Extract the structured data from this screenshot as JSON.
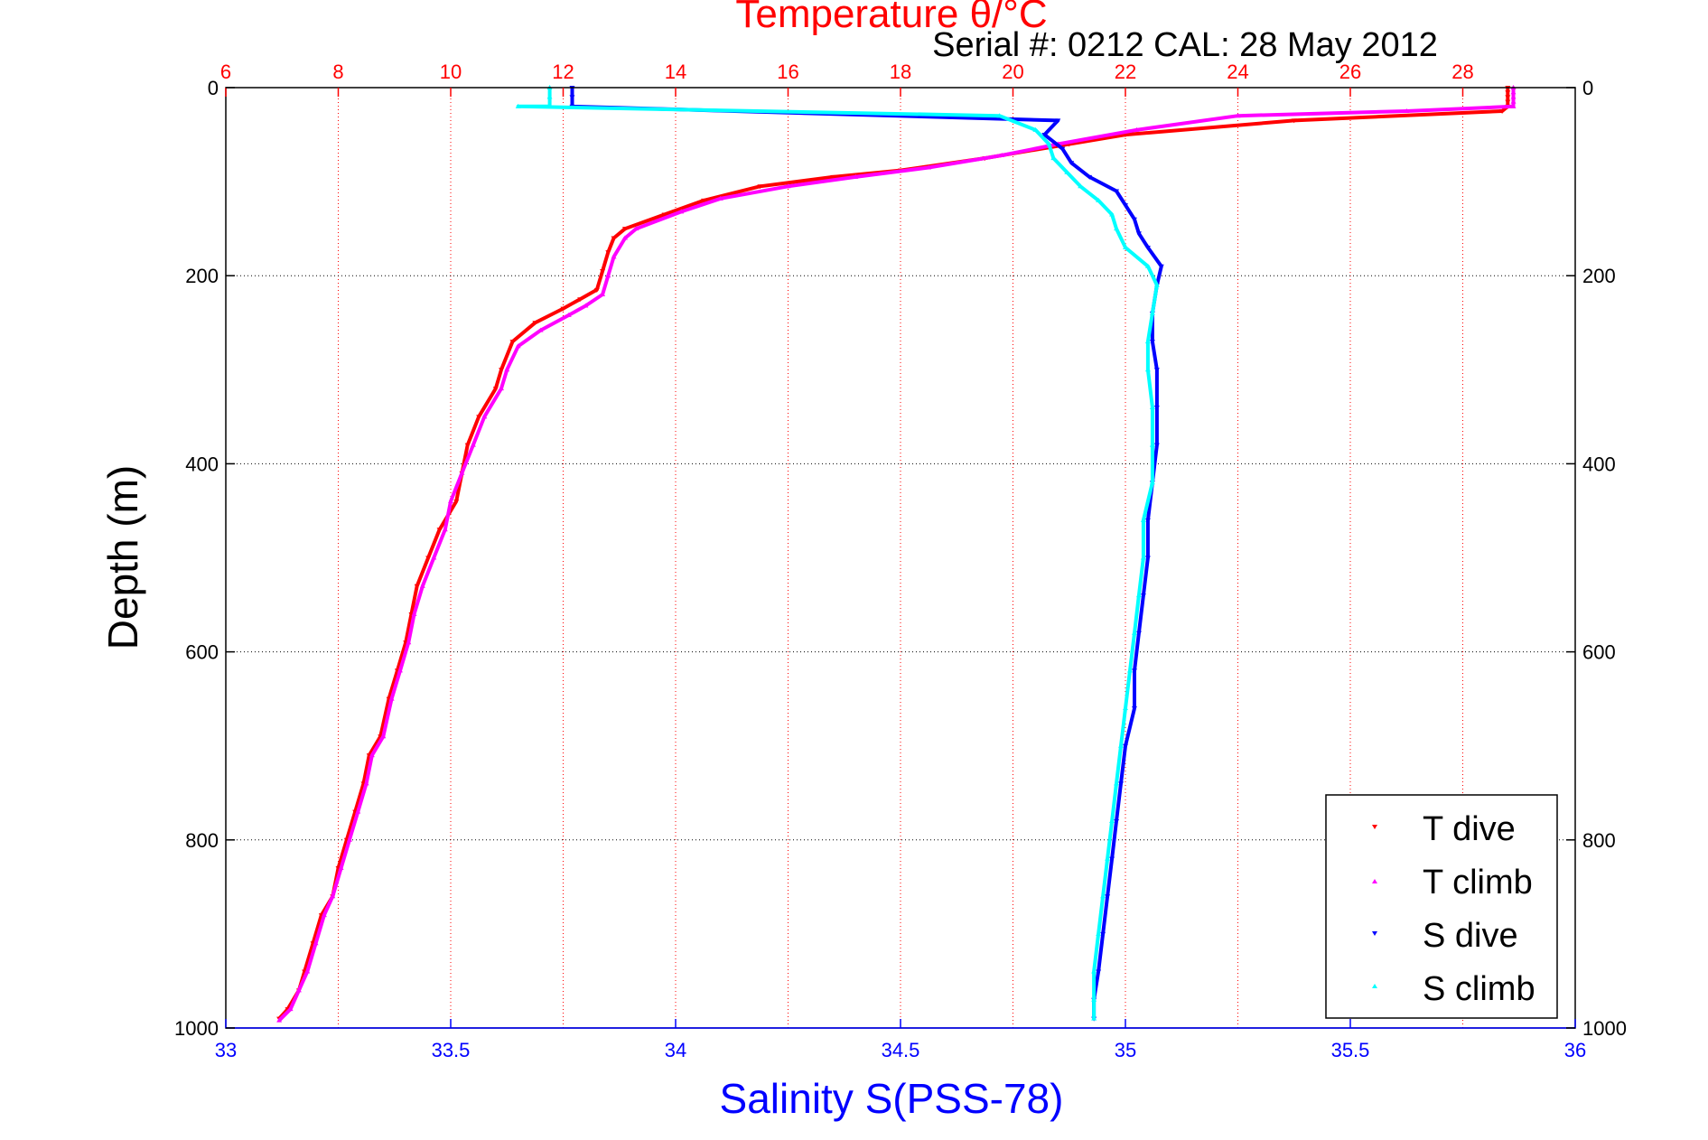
{
  "chart_data": {
    "type": "scatter",
    "title": "Temperature θ/°C",
    "subtitle": "Serial #: 0212  CAL: 28 May 2012",
    "ylabel": "Depth (m)",
    "xlabel_bottom": "Salinity S(PSS-78)",
    "ylim": [
      1000,
      0
    ],
    "yticks": [
      "0",
      "200",
      "400",
      "600",
      "800",
      "1000"
    ],
    "xlim_temperature": [
      6,
      30
    ],
    "xticks_temperature": [
      "6",
      "8",
      "10",
      "12",
      "14",
      "16",
      "18",
      "20",
      "22",
      "24",
      "26",
      "28"
    ],
    "xlim_salinity": [
      33,
      36
    ],
    "xticks_salinity": [
      "33",
      "33.5",
      "34",
      "34.5",
      "35",
      "35.5",
      "36"
    ],
    "grid": true,
    "legend_position": "bottom-right",
    "colors": {
      "temperature_axis": "#ff0000",
      "salinity_axis": "#0000ff",
      "grid_temp": "#ff0000",
      "grid_depth": "#000000"
    },
    "series": [
      {
        "name": "T dive",
        "axis": "temperature",
        "marker": "triangle-down",
        "color": "#ff0000",
        "points": [
          [
            28.8,
            0
          ],
          [
            28.8,
            5
          ],
          [
            28.8,
            10
          ],
          [
            28.8,
            15
          ],
          [
            28.8,
            20
          ],
          [
            28.7,
            25
          ],
          [
            25,
            35
          ],
          [
            22,
            50
          ],
          [
            21,
            60
          ],
          [
            19.5,
            75
          ],
          [
            18,
            88
          ],
          [
            16.8,
            95
          ],
          [
            15.5,
            105
          ],
          [
            14.5,
            120
          ],
          [
            13.8,
            135
          ],
          [
            13.1,
            150
          ],
          [
            12.9,
            160
          ],
          [
            12.8,
            175
          ],
          [
            12.7,
            195
          ],
          [
            12.6,
            215
          ],
          [
            12.3,
            225
          ],
          [
            12.0,
            235
          ],
          [
            11.5,
            250
          ],
          [
            11.1,
            270
          ],
          [
            10.9,
            300
          ],
          [
            10.8,
            320
          ],
          [
            10.5,
            350
          ],
          [
            10.3,
            380
          ],
          [
            10.2,
            410
          ],
          [
            10.1,
            440
          ],
          [
            9.8,
            470
          ],
          [
            9.6,
            500
          ],
          [
            9.4,
            530
          ],
          [
            9.3,
            560
          ],
          [
            9.2,
            590
          ],
          [
            9.05,
            620
          ],
          [
            8.9,
            650
          ],
          [
            8.75,
            690
          ],
          [
            8.55,
            710
          ],
          [
            8.45,
            740
          ],
          [
            8.3,
            770
          ],
          [
            8.15,
            800
          ],
          [
            8.0,
            830
          ],
          [
            7.9,
            860
          ],
          [
            7.7,
            880
          ],
          [
            7.55,
            910
          ],
          [
            7.4,
            940
          ],
          [
            7.3,
            960
          ],
          [
            7.1,
            980
          ],
          [
            6.95,
            990
          ]
        ]
      },
      {
        "name": "T climb",
        "axis": "temperature",
        "marker": "triangle-up",
        "color": "#ff00ff",
        "points": [
          [
            28.9,
            0
          ],
          [
            28.9,
            5
          ],
          [
            28.9,
            10
          ],
          [
            28.9,
            15
          ],
          [
            28.9,
            20
          ],
          [
            27,
            25
          ],
          [
            24,
            30
          ],
          [
            22.2,
            45
          ],
          [
            20.8,
            60
          ],
          [
            19.8,
            72
          ],
          [
            18.5,
            85
          ],
          [
            17.2,
            95
          ],
          [
            16.0,
            105
          ],
          [
            14.8,
            118
          ],
          [
            14.1,
            132
          ],
          [
            13.3,
            150
          ],
          [
            13.1,
            160
          ],
          [
            12.9,
            180
          ],
          [
            12.8,
            200
          ],
          [
            12.7,
            220
          ],
          [
            12.4,
            232
          ],
          [
            12.1,
            242
          ],
          [
            11.6,
            258
          ],
          [
            11.2,
            275
          ],
          [
            11.0,
            300
          ],
          [
            10.9,
            320
          ],
          [
            10.6,
            350
          ],
          [
            10.4,
            380
          ],
          [
            10.2,
            410
          ],
          [
            10.0,
            440
          ],
          [
            9.9,
            470
          ],
          [
            9.7,
            500
          ],
          [
            9.5,
            530
          ],
          [
            9.35,
            560
          ],
          [
            9.25,
            590
          ],
          [
            9.1,
            620
          ],
          [
            8.95,
            650
          ],
          [
            8.8,
            690
          ],
          [
            8.6,
            710
          ],
          [
            8.5,
            740
          ],
          [
            8.35,
            770
          ],
          [
            8.2,
            800
          ],
          [
            8.05,
            830
          ],
          [
            7.9,
            860
          ],
          [
            7.75,
            880
          ],
          [
            7.6,
            910
          ],
          [
            7.45,
            940
          ],
          [
            7.3,
            960
          ],
          [
            7.15,
            980
          ],
          [
            6.95,
            992
          ]
        ]
      },
      {
        "name": "S dive",
        "axis": "salinity",
        "marker": "triangle-down",
        "color": "#0000ff",
        "points": [
          [
            33.77,
            0
          ],
          [
            33.77,
            10
          ],
          [
            33.77,
            20
          ],
          [
            34.85,
            35
          ],
          [
            34.82,
            50
          ],
          [
            34.86,
            65
          ],
          [
            34.88,
            80
          ],
          [
            34.92,
            95
          ],
          [
            34.98,
            110
          ],
          [
            35.0,
            125
          ],
          [
            35.02,
            140
          ],
          [
            35.03,
            155
          ],
          [
            35.05,
            170
          ],
          [
            35.08,
            190
          ],
          [
            35.07,
            210
          ],
          [
            35.06,
            240
          ],
          [
            35.06,
            270
          ],
          [
            35.07,
            300
          ],
          [
            35.07,
            340
          ],
          [
            35.07,
            380
          ],
          [
            35.06,
            420
          ],
          [
            35.05,
            460
          ],
          [
            35.05,
            500
          ],
          [
            35.04,
            540
          ],
          [
            35.03,
            580
          ],
          [
            35.02,
            620
          ],
          [
            35.02,
            660
          ],
          [
            35.0,
            700
          ],
          [
            34.99,
            740
          ],
          [
            34.98,
            780
          ],
          [
            34.97,
            820
          ],
          [
            34.96,
            860
          ],
          [
            34.95,
            900
          ],
          [
            34.94,
            940
          ],
          [
            34.93,
            970
          ],
          [
            34.93,
            990
          ]
        ]
      },
      {
        "name": "S climb",
        "axis": "salinity",
        "marker": "triangle-up",
        "color": "#00ffff",
        "points": [
          [
            33.72,
            0
          ],
          [
            33.72,
            10
          ],
          [
            33.72,
            20
          ],
          [
            33.65,
            20
          ],
          [
            34.72,
            30
          ],
          [
            34.8,
            45
          ],
          [
            34.83,
            60
          ],
          [
            34.84,
            75
          ],
          [
            34.87,
            90
          ],
          [
            34.9,
            105
          ],
          [
            34.94,
            120
          ],
          [
            34.97,
            135
          ],
          [
            34.98,
            150
          ],
          [
            35.0,
            170
          ],
          [
            35.05,
            190
          ],
          [
            35.07,
            210
          ],
          [
            35.06,
            240
          ],
          [
            35.05,
            270
          ],
          [
            35.05,
            300
          ],
          [
            35.06,
            340
          ],
          [
            35.06,
            380
          ],
          [
            35.06,
            420
          ],
          [
            35.04,
            460
          ],
          [
            35.04,
            500
          ],
          [
            35.03,
            540
          ],
          [
            35.02,
            580
          ],
          [
            35.01,
            620
          ],
          [
            35.0,
            660
          ],
          [
            34.99,
            700
          ],
          [
            34.98,
            740
          ],
          [
            34.97,
            780
          ],
          [
            34.96,
            820
          ],
          [
            34.95,
            860
          ],
          [
            34.94,
            900
          ],
          [
            34.93,
            940
          ],
          [
            34.93,
            970
          ],
          [
            34.93,
            990
          ]
        ]
      }
    ]
  }
}
